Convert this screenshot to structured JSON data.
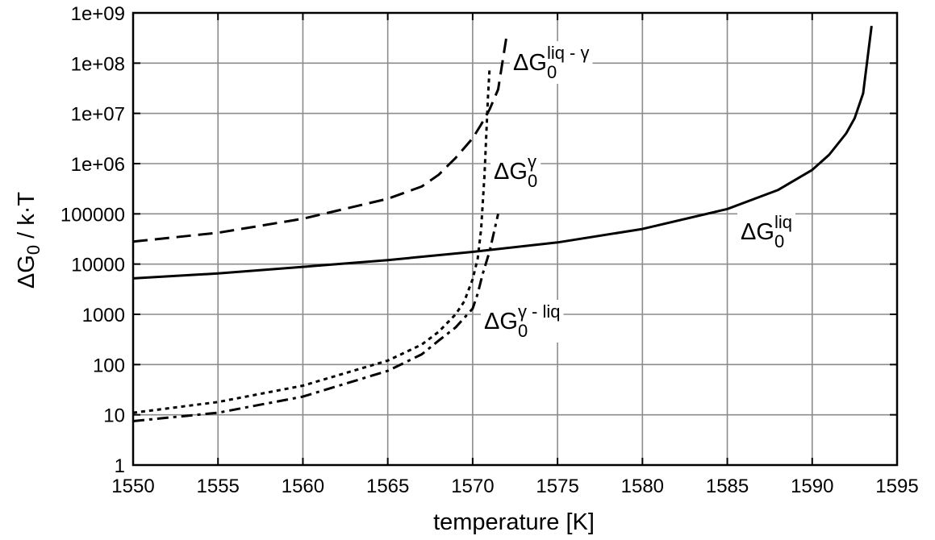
{
  "chart_data": {
    "type": "line",
    "title": "",
    "xlabel": "temperature [K]",
    "ylabel": "ΔG₀ / k·T",
    "ylabel_parts": {
      "main": "ΔG",
      "sub": "0",
      "rest": " / k·T"
    },
    "xlim": [
      1550,
      1595
    ],
    "ylim": [
      1,
      1000000000
    ],
    "yscale": "log",
    "grid": true,
    "legend": "none",
    "x_ticks": [
      1550,
      1555,
      1560,
      1565,
      1570,
      1575,
      1580,
      1585,
      1590,
      1595
    ],
    "x_tick_labels": [
      "1550",
      "1555",
      "1560",
      "1565",
      "1570",
      "1575",
      "1580",
      "1585",
      "1590",
      "1595"
    ],
    "y_ticks": [
      1,
      10,
      100,
      1000,
      10000,
      100000,
      1000000,
      10000000,
      100000000,
      1000000000
    ],
    "y_tick_labels": [
      "1",
      "10",
      "100",
      "1000",
      "10000",
      "100000",
      "1e+06",
      "1e+07",
      "1e+08",
      "1e+09"
    ],
    "series": [
      {
        "name": "ΔG₀^liq",
        "label_parts": {
          "main": "ΔG",
          "sub": "0",
          "sup": "liq"
        },
        "style": "solid",
        "color": "#000000",
        "x": [
          1550,
          1555,
          1560,
          1565,
          1570,
          1575,
          1580,
          1585,
          1588,
          1590,
          1591,
          1592,
          1592.5,
          1593,
          1593.5
        ],
        "y": [
          5200,
          6500,
          8800,
          12000,
          17500,
          27000,
          50000,
          125000,
          300000,
          750000,
          1500000,
          4000000,
          8000000,
          25000000,
          550000000
        ]
      },
      {
        "name": "ΔG₀^liq - γ",
        "label_parts": {
          "main": "ΔG",
          "sub": "0",
          "sup": "liq - γ"
        },
        "style": "dashed",
        "color": "#000000",
        "x": [
          1550,
          1555,
          1560,
          1565,
          1567,
          1568,
          1569,
          1570,
          1570.5,
          1571,
          1571.5,
          1572
        ],
        "y": [
          28000,
          42000,
          80000,
          200000,
          350000,
          600000,
          1300000,
          3200000,
          6000000,
          12000000,
          30000000,
          350000000
        ]
      },
      {
        "name": "ΔG₀^γ",
        "label_parts": {
          "main": "ΔG",
          "sub": "0",
          "sup": "γ"
        },
        "style": "dotted",
        "color": "#000000",
        "x": [
          1550,
          1555,
          1560,
          1565,
          1567,
          1568,
          1569,
          1569.5,
          1570,
          1570.3,
          1570.5,
          1570.7,
          1570.9,
          1571
        ],
        "y": [
          11,
          18,
          38,
          120,
          250,
          450,
          1000,
          1800,
          5000,
          13000,
          50000,
          600000,
          20000000,
          80000000
        ]
      },
      {
        "name": "ΔG₀^γ - liq",
        "label_parts": {
          "main": "ΔG",
          "sub": "0",
          "sup": "γ - liq"
        },
        "style": "dashdot",
        "color": "#000000",
        "x": [
          1550,
          1555,
          1560,
          1565,
          1567,
          1568,
          1569,
          1570,
          1570.3,
          1570.6,
          1571,
          1571.5
        ],
        "y": [
          7.5,
          11,
          23,
          75,
          160,
          300,
          550,
          1300,
          2600,
          6500,
          18000,
          100000
        ]
      }
    ]
  }
}
